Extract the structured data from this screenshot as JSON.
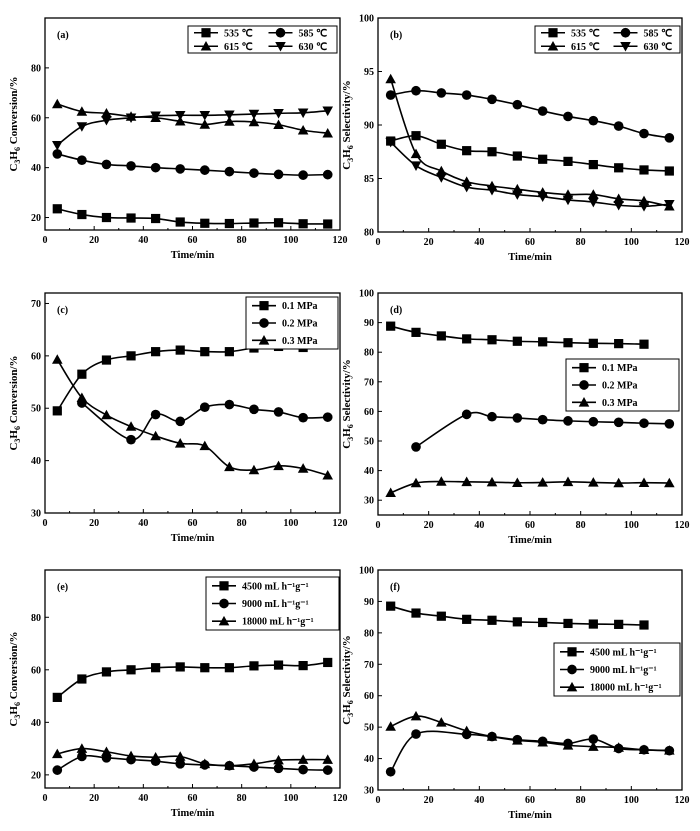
{
  "chart_data": [
    {
      "type": "line",
      "panel_label": "(a)",
      "xlabel": "Time/min",
      "ylabel": "C3H6 Conversion/%",
      "xlim": [
        0,
        120
      ],
      "ylim": [
        15,
        100
      ],
      "xticks": [
        0,
        20,
        40,
        60,
        80,
        100,
        120
      ],
      "yticks": [
        20,
        40,
        60,
        80
      ],
      "legend_columns": 2,
      "legend_position": "top-right",
      "series": [
        {
          "name": "535 ℃",
          "marker": "square",
          "x": [
            5,
            15,
            25,
            35,
            45,
            55,
            65,
            75,
            85,
            95,
            105,
            115
          ],
          "values": [
            23.5,
            21.2,
            20.0,
            19.8,
            19.6,
            18.2,
            17.7,
            17.6,
            17.8,
            17.9,
            17.5,
            17.4
          ]
        },
        {
          "name": "585 ℃",
          "marker": "circle",
          "x": [
            5,
            15,
            25,
            35,
            45,
            55,
            65,
            75,
            85,
            95,
            105,
            115
          ],
          "values": [
            45.5,
            43.0,
            41.3,
            40.7,
            40.0,
            39.5,
            39.0,
            38.4,
            37.8,
            37.3,
            37.0,
            37.2
          ]
        },
        {
          "name": "615 ℃",
          "marker": "triangle-up",
          "x": [
            5,
            15,
            25,
            35,
            45,
            55,
            65,
            75,
            85,
            95,
            105,
            115
          ],
          "values": [
            65.5,
            62.5,
            61.8,
            60.5,
            60.0,
            58.6,
            57.3,
            58.5,
            58.3,
            57.2,
            55.0,
            53.8
          ]
        },
        {
          "name": "630 ℃",
          "marker": "triangle-down",
          "x": [
            5,
            15,
            25,
            35,
            45,
            55,
            65,
            75,
            85,
            95,
            105,
            115
          ],
          "values": [
            49.0,
            56.5,
            59.0,
            60.0,
            60.8,
            61.0,
            61.0,
            61.2,
            61.5,
            61.8,
            62.0,
            62.8
          ]
        }
      ]
    },
    {
      "type": "line",
      "panel_label": "(b)",
      "xlabel": "Time/min",
      "ylabel": "C3H6 Selectivity/%",
      "xlim": [
        0,
        120
      ],
      "ylim": [
        80,
        100
      ],
      "xticks": [
        0,
        20,
        40,
        60,
        80,
        100,
        120
      ],
      "yticks": [
        80,
        85,
        90,
        95,
        100
      ],
      "legend_columns": 2,
      "legend_position": "top-right",
      "series": [
        {
          "name": "535 ℃",
          "marker": "square",
          "x": [
            5,
            15,
            25,
            35,
            45,
            55,
            65,
            75,
            85,
            95,
            105,
            115
          ],
          "values": [
            88.5,
            89.0,
            88.2,
            87.6,
            87.5,
            87.1,
            86.8,
            86.6,
            86.3,
            86.0,
            85.8,
            85.7
          ]
        },
        {
          "name": "585 ℃",
          "marker": "circle",
          "x": [
            5,
            15,
            25,
            35,
            45,
            55,
            65,
            75,
            85,
            95,
            105,
            115
          ],
          "values": [
            92.8,
            93.2,
            93.0,
            92.8,
            92.4,
            91.9,
            91.3,
            90.8,
            90.4,
            89.9,
            89.2,
            88.8
          ]
        },
        {
          "name": "615 ℃",
          "marker": "triangle-up",
          "x": [
            5,
            15,
            25,
            35,
            45,
            55,
            65,
            75,
            85,
            95,
            105,
            115
          ],
          "values": [
            94.3,
            87.3,
            85.7,
            84.7,
            84.3,
            84.0,
            83.7,
            83.5,
            83.5,
            83.1,
            82.9,
            82.4
          ]
        },
        {
          "name": "630 ℃",
          "marker": "triangle-down",
          "x": [
            5,
            15,
            25,
            35,
            45,
            55,
            65,
            75,
            85,
            95,
            105,
            115
          ],
          "values": [
            88.4,
            86.2,
            85.1,
            84.2,
            83.9,
            83.5,
            83.3,
            83.0,
            82.8,
            82.5,
            82.4,
            82.6
          ]
        }
      ]
    },
    {
      "type": "line",
      "panel_label": "(c)",
      "xlabel": "Time/min",
      "ylabel": "C3H6 Conversion/%",
      "xlim": [
        0,
        120
      ],
      "ylim": [
        30,
        72
      ],
      "xticks": [
        0,
        20,
        40,
        60,
        80,
        100,
        120
      ],
      "yticks": [
        30,
        40,
        50,
        60,
        70
      ],
      "legend_columns": 1,
      "legend_position": "top-right",
      "series": [
        {
          "name": "0.1 MPa",
          "marker": "square",
          "x": [
            5,
            15,
            25,
            35,
            45,
            55,
            65,
            75,
            85,
            95,
            105,
            115
          ],
          "values": [
            49.5,
            56.5,
            59.2,
            60.0,
            60.8,
            61.1,
            60.8,
            60.8,
            61.5,
            61.8,
            61.6,
            62.8
          ]
        },
        {
          "name": "0.2 MPa",
          "marker": "circle",
          "x": [
            15,
            35,
            45,
            55,
            65,
            75,
            85,
            95,
            105,
            115
          ],
          "values": [
            51.0,
            44.0,
            48.8,
            47.5,
            50.2,
            50.7,
            49.8,
            49.3,
            48.2,
            48.3
          ]
        },
        {
          "name": "0.3 MPa",
          "marker": "triangle-up",
          "x": [
            5,
            15,
            25,
            35,
            45,
            55,
            65,
            75,
            85,
            95,
            105,
            115
          ],
          "values": [
            59.3,
            52.0,
            48.7,
            46.5,
            44.7,
            43.3,
            42.8,
            38.8,
            38.2,
            39.0,
            38.5,
            37.2
          ]
        }
      ]
    },
    {
      "type": "line",
      "panel_label": "(d)",
      "xlabel": "Time/min",
      "ylabel": "C3H6 Selectivity/%",
      "xlim": [
        0,
        120
      ],
      "ylim": [
        25,
        100
      ],
      "xticks": [
        0,
        20,
        40,
        60,
        80,
        100,
        120
      ],
      "yticks": [
        30,
        40,
        50,
        60,
        70,
        80,
        90,
        100
      ],
      "legend_columns": 1,
      "legend_position": "middle-right",
      "series": [
        {
          "name": "0.1 MPa",
          "marker": "square",
          "x": [
            5,
            15,
            25,
            35,
            45,
            55,
            65,
            75,
            85,
            95,
            105
          ],
          "values": [
            88.8,
            86.7,
            85.5,
            84.5,
            84.2,
            83.7,
            83.5,
            83.2,
            83.0,
            82.9,
            82.7
          ]
        },
        {
          "name": "0.2 MPa",
          "marker": "circle",
          "x": [
            15,
            35,
            45,
            55,
            65,
            75,
            85,
            95,
            105,
            115
          ],
          "values": [
            48.0,
            59.0,
            58.2,
            57.8,
            57.2,
            56.8,
            56.5,
            56.3,
            56.0,
            55.8
          ]
        },
        {
          "name": "0.3 MPa",
          "marker": "triangle-up",
          "x": [
            5,
            15,
            25,
            35,
            45,
            55,
            65,
            75,
            85,
            95,
            105,
            115
          ],
          "values": [
            32.5,
            35.8,
            36.3,
            36.2,
            36.1,
            35.9,
            36.0,
            36.2,
            36.0,
            35.8,
            35.9,
            35.8
          ]
        }
      ]
    },
    {
      "type": "line",
      "panel_label": "(e)",
      "xlabel": "Time/min",
      "ylabel": "C3H6 Conversion/%",
      "xlim": [
        0,
        120
      ],
      "ylim": [
        15,
        98
      ],
      "xticks": [
        0,
        20,
        40,
        60,
        80,
        100,
        120
      ],
      "yticks": [
        20,
        40,
        60,
        80
      ],
      "legend_columns": 1,
      "legend_position": "top-right",
      "series": [
        {
          "name": "4500 mL h⁻¹g⁻¹",
          "marker": "square",
          "x": [
            5,
            15,
            25,
            35,
            45,
            55,
            65,
            75,
            85,
            95,
            105,
            115
          ],
          "values": [
            49.5,
            56.5,
            59.2,
            60.0,
            60.8,
            61.1,
            60.8,
            60.8,
            61.5,
            61.8,
            61.6,
            62.8
          ]
        },
        {
          "name": "9000 mL h⁻¹g⁻¹",
          "marker": "circle",
          "x": [
            5,
            15,
            25,
            35,
            45,
            55,
            65,
            75,
            85,
            95,
            105,
            115
          ],
          "values": [
            21.8,
            27.0,
            26.5,
            25.8,
            25.2,
            24.2,
            23.8,
            23.5,
            23.0,
            22.5,
            22.0,
            21.8
          ]
        },
        {
          "name": "18000 mL h⁻¹g⁻¹",
          "marker": "triangle-up",
          "x": [
            5,
            15,
            25,
            35,
            45,
            55,
            65,
            75,
            85,
            95,
            105,
            115
          ],
          "values": [
            28.0,
            30.0,
            28.8,
            27.2,
            26.7,
            27.0,
            24.2,
            23.5,
            24.2,
            25.6,
            25.8,
            25.8
          ]
        }
      ]
    },
    {
      "type": "line",
      "panel_label": "(f)",
      "xlabel": "Time/min",
      "ylabel": "C3H6 Selectivity/%",
      "xlim": [
        0,
        120
      ],
      "ylim": [
        30,
        100
      ],
      "xticks": [
        0,
        20,
        40,
        60,
        80,
        100,
        120
      ],
      "yticks": [
        30,
        40,
        50,
        60,
        70,
        80,
        90,
        100
      ],
      "legend_columns": 1,
      "legend_position": "middle-right",
      "series": [
        {
          "name": "4500 mL h⁻¹g⁻¹",
          "marker": "square",
          "x": [
            5,
            15,
            25,
            35,
            45,
            55,
            65,
            75,
            85,
            95,
            105
          ],
          "values": [
            88.5,
            86.3,
            85.3,
            84.3,
            84.0,
            83.5,
            83.3,
            83.0,
            82.8,
            82.7,
            82.5
          ]
        },
        {
          "name": "9000 mL h⁻¹g⁻¹",
          "marker": "circle",
          "x": [
            5,
            15,
            35,
            45,
            55,
            65,
            75,
            85,
            95,
            105,
            115
          ],
          "values": [
            35.8,
            47.8,
            47.7,
            47.0,
            46.0,
            45.5,
            44.8,
            46.2,
            43.2,
            42.8,
            42.5
          ]
        },
        {
          "name": "18000 mL h⁻¹g⁻¹",
          "marker": "triangle-up",
          "x": [
            5,
            15,
            25,
            35,
            45,
            55,
            65,
            75,
            85,
            95,
            105,
            115
          ],
          "values": [
            50.2,
            53.5,
            51.5,
            48.8,
            47.0,
            45.8,
            45.2,
            44.2,
            43.8,
            43.5,
            42.8,
            42.6
          ]
        }
      ]
    }
  ]
}
